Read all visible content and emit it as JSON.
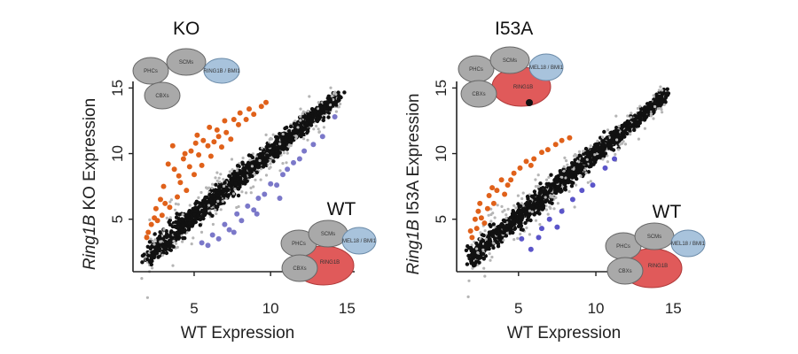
{
  "chart_data": [
    {
      "type": "scatter",
      "title": "KO",
      "xlabel": "WT Expression",
      "ylabel_italic": "Ring1B",
      "ylabel_rest": " KO Expression",
      "xlim": [
        1,
        15.5
      ],
      "ylim": [
        1,
        15.5
      ],
      "xticks": [
        "5",
        "10",
        "15"
      ],
      "yticks": [
        "5",
        "10",
        "15"
      ],
      "grid": false,
      "series": [
        {
          "role": "unchanged",
          "color": "#111111",
          "trend": {
            "x": [
              1.8,
              14.5
            ],
            "y": [
              2.2,
              14.4
            ]
          },
          "spread": 0.55
        },
        {
          "role": "up",
          "color": "#e0611a",
          "points": [
            [
              2.2,
              4.6
            ],
            [
              2.5,
              5.8
            ],
            [
              3.0,
              7.5
            ],
            [
              3.3,
              9.2
            ],
            [
              3.6,
              10.6
            ],
            [
              2.8,
              6.5
            ],
            [
              4.0,
              8.3
            ],
            [
              4.3,
              9.6
            ],
            [
              4.8,
              10.2
            ],
            [
              5.2,
              11.4
            ],
            [
              5.6,
              11.0
            ],
            [
              6.0,
              12.0
            ],
            [
              6.5,
              11.8
            ],
            [
              7.0,
              12.5
            ],
            [
              7.6,
              12.6
            ],
            [
              8.0,
              13.1
            ],
            [
              8.6,
              13.4
            ],
            [
              9.4,
              13.6
            ],
            [
              4.5,
              7.2
            ],
            [
              5.0,
              8.4
            ],
            [
              5.5,
              9.1
            ],
            [
              6.1,
              9.8
            ],
            [
              6.8,
              10.5
            ],
            [
              7.4,
              11.1
            ],
            [
              3.4,
              5.9
            ],
            [
              3.9,
              6.7
            ],
            [
              2.6,
              4.9
            ],
            [
              4.1,
              7.8
            ],
            [
              5.9,
              10.6
            ],
            [
              6.3,
              10.9
            ],
            [
              7.1,
              11.6
            ],
            [
              7.9,
              12.2
            ],
            [
              8.4,
              12.6
            ],
            [
              3.1,
              6.2
            ],
            [
              2.9,
              5.3
            ],
            [
              4.7,
              9.0
            ],
            [
              5.3,
              9.9
            ],
            [
              6.6,
              11.3
            ],
            [
              8.9,
              13.0
            ],
            [
              9.7,
              13.9
            ],
            [
              2.0,
              4.0
            ],
            [
              2.4,
              5.1
            ],
            [
              3.7,
              8.8
            ],
            [
              4.4,
              10.0
            ],
            [
              5.1,
              10.8
            ],
            [
              1.9,
              3.6
            ]
          ]
        },
        {
          "role": "down",
          "color": "#7b78c9",
          "points": [
            [
              5.5,
              3.2
            ],
            [
              6.2,
              3.8
            ],
            [
              7.0,
              4.6
            ],
            [
              7.8,
              5.4
            ],
            [
              8.5,
              6.0
            ],
            [
              9.2,
              6.6
            ],
            [
              10.0,
              7.7
            ],
            [
              10.8,
              8.4
            ],
            [
              11.5,
              9.3
            ],
            [
              12.2,
              10.2
            ],
            [
              13.4,
              11.3
            ],
            [
              14.2,
              12.8
            ],
            [
              6.6,
              3.5
            ],
            [
              7.3,
              4.2
            ],
            [
              8.1,
              4.9
            ],
            [
              8.9,
              5.7
            ],
            [
              9.6,
              6.9
            ],
            [
              10.4,
              7.6
            ],
            [
              11.1,
              8.8
            ],
            [
              11.9,
              9.6
            ],
            [
              12.8,
              10.7
            ],
            [
              7.6,
              4.0
            ],
            [
              9.1,
              5.4
            ],
            [
              10.6,
              6.6
            ],
            [
              5.9,
              3.0
            ]
          ]
        }
      ],
      "complexes": [
        {
          "label": "KO",
          "subunits": [
            "PHCs",
            "SCMs",
            "CBXs",
            "RING1B / BMI1"
          ],
          "ring1b": false
        },
        {
          "label": "WT",
          "subunits": [
            "PHCs",
            "SCMs",
            "CBXs",
            "RING1B",
            "MEL18 / BMI1"
          ],
          "ring1b": true
        }
      ]
    },
    {
      "type": "scatter",
      "title": "I53A",
      "xlabel": "WT Expression",
      "ylabel_italic": "Ring1B",
      "ylabel_rest": " I53A Expression",
      "xlim": [
        1,
        15.5
      ],
      "ylim": [
        1,
        15.5
      ],
      "xticks": [
        "5",
        "10",
        "15"
      ],
      "yticks": [
        "5",
        "10",
        "15"
      ],
      "grid": false,
      "series": [
        {
          "role": "unchanged",
          "color": "#111111",
          "trend": {
            "x": [
              1.8,
              14.5
            ],
            "y": [
              2.0,
              14.4
            ]
          },
          "spread": 0.5
        },
        {
          "role": "up",
          "color": "#e0611a",
          "points": [
            [
              2.0,
              3.6
            ],
            [
              2.3,
              4.3
            ],
            [
              2.6,
              5.1
            ],
            [
              2.4,
              5.6
            ],
            [
              3.0,
              5.8
            ],
            [
              3.3,
              7.4
            ],
            [
              3.6,
              7.2
            ],
            [
              3.9,
              8.0
            ],
            [
              4.3,
              7.6
            ],
            [
              4.7,
              8.5
            ],
            [
              5.1,
              8.9
            ],
            [
              5.5,
              9.4
            ],
            [
              6.0,
              9.6
            ],
            [
              6.5,
              10.1
            ],
            [
              6.9,
              10.3
            ],
            [
              7.4,
              10.7
            ],
            [
              7.8,
              11.0
            ],
            [
              8.3,
              11.2
            ],
            [
              2.8,
              4.7
            ],
            [
              3.4,
              6.2
            ],
            [
              4.1,
              6.9
            ],
            [
              2.2,
              5.0
            ],
            [
              1.9,
              4.1
            ],
            [
              4.5,
              8.0
            ],
            [
              5.8,
              9.1
            ],
            [
              2.5,
              6.2
            ],
            [
              3.1,
              6.8
            ]
          ]
        },
        {
          "role": "down",
          "color": "#5b55c9",
          "points": [
            [
              5.2,
              3.5
            ],
            [
              5.8,
              2.7
            ],
            [
              6.5,
              4.3
            ],
            [
              7.0,
              5.0
            ],
            [
              7.8,
              5.6
            ],
            [
              8.5,
              6.5
            ],
            [
              9.1,
              7.2
            ],
            [
              9.8,
              7.6
            ],
            [
              10.6,
              8.9
            ],
            [
              11.2,
              9.6
            ],
            [
              6.3,
              3.6
            ],
            [
              7.5,
              4.4
            ]
          ]
        }
      ],
      "complexes": [
        {
          "label": "I53A",
          "subunits": [
            "PHCs",
            "SCMs",
            "CBXs",
            "RING1B",
            "MEL18 / BMI1"
          ],
          "ring1b": true,
          "mutant": true
        },
        {
          "label": "WT",
          "subunits": [
            "PHCs",
            "SCMs",
            "CBXs",
            "RING1B",
            "MEL18 / BMI1"
          ],
          "ring1b": true
        }
      ]
    }
  ]
}
